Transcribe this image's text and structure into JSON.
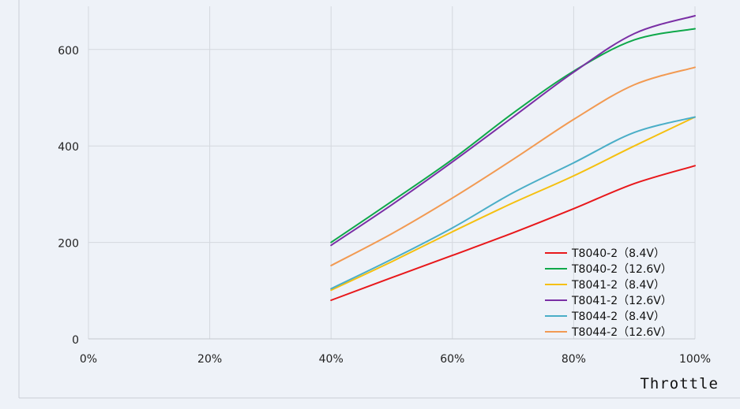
{
  "chart_data": {
    "type": "line",
    "title": "",
    "xlabel": "Throttle",
    "ylabel": "",
    "x": [
      0.4,
      0.5,
      0.6,
      0.7,
      0.8,
      0.9,
      1.0
    ],
    "xlim": [
      0,
      1
    ],
    "ylim": [
      0,
      660
    ],
    "xticks": [
      "0%",
      "20%",
      "40%",
      "60%",
      "80%",
      "100%"
    ],
    "yticks": [
      "0",
      "200",
      "400",
      "600"
    ],
    "grid": true,
    "legend_position": "bottom-right",
    "series": [
      {
        "name": "T8040-2（8.4V）",
        "color": "#e8181b",
        "values": [
          80,
          127,
          173,
          220,
          270,
          322,
          359
        ]
      },
      {
        "name": "T8040-2（12.6V）",
        "color": "#0fa84a",
        "values": [
          200,
          285,
          372,
          468,
          555,
          620,
          643
        ]
      },
      {
        "name": "T8041-2（8.4V）",
        "color": "#f5c010",
        "values": [
          101,
          160,
          222,
          282,
          338,
          400,
          460
        ]
      },
      {
        "name": "T8041-2（12.6V）",
        "color": "#7a2fa5",
        "values": [
          194,
          278,
          367,
          460,
          553,
          633,
          670
        ]
      },
      {
        "name": "T8044-2（8.4V）",
        "color": "#4aaec7",
        "values": [
          104,
          165,
          230,
          303,
          365,
          428,
          460
        ]
      },
      {
        "name": "T8044-2（12.6V）",
        "color": "#f29a52",
        "values": [
          152,
          218,
          292,
          372,
          455,
          527,
          563
        ]
      }
    ]
  }
}
